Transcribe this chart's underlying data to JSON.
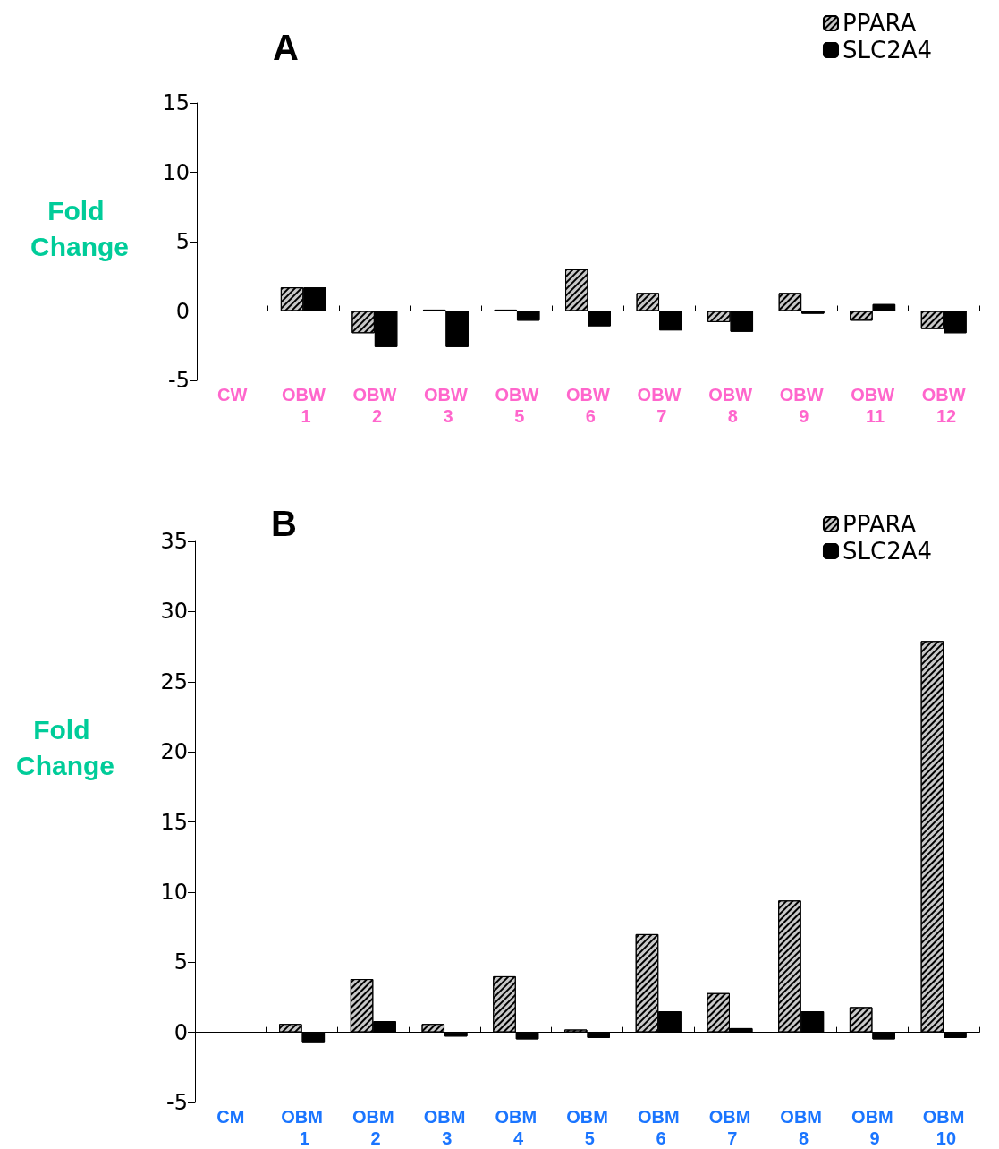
{
  "chart_data": [
    {
      "type": "bar",
      "title": "A",
      "ylabel": "Fold Change",
      "categories": [
        "CW",
        "OBW 1",
        "OBW 2",
        "OBW 3",
        "OBW 5",
        "OBW 6",
        "OBW 7",
        "OBW 8",
        "OBW 9",
        "OBW 11",
        "OBW 12"
      ],
      "series": [
        {
          "name": "PPARA",
          "color": "#c8c8c8",
          "values": [
            null,
            1.7,
            -1.6,
            0.1,
            0.1,
            3.0,
            1.3,
            -0.8,
            1.3,
            -0.7,
            -1.3
          ]
        },
        {
          "name": "SLC2A4",
          "color": "#000000",
          "values": [
            null,
            1.7,
            -2.6,
            -2.6,
            -0.7,
            -1.1,
            -1.4,
            -1.5,
            -0.2,
            0.5,
            -1.6
          ]
        }
      ],
      "ylim": [
        -5,
        15
      ],
      "yticks": [
        -5,
        0,
        5,
        10,
        15
      ],
      "legend": "top right"
    },
    {
      "type": "bar",
      "title": "B",
      "ylabel": "Fold Change",
      "categories": [
        "CM",
        "OBM 1",
        "OBM 2",
        "OBM 3",
        "OBM 4",
        "OBM 5",
        "OBM 6",
        "OBM 7",
        "OBM 8",
        "OBM 9",
        "OBM 10"
      ],
      "series": [
        {
          "name": "PPARA",
          "color": "#c8c8c8",
          "values": [
            null,
            0.6,
            3.8,
            0.6,
            4.0,
            0.2,
            7.0,
            2.8,
            9.4,
            1.8,
            27.9
          ]
        },
        {
          "name": "SLC2A4",
          "color": "#000000",
          "values": [
            null,
            -0.7,
            0.8,
            -0.3,
            -0.5,
            -0.4,
            1.5,
            0.3,
            1.5,
            -0.5,
            -0.4
          ]
        }
      ],
      "ylim": [
        -5,
        35
      ],
      "yticks": [
        -5,
        0,
        5,
        10,
        15,
        20,
        25,
        30,
        35
      ],
      "legend": "top right"
    }
  ]
}
